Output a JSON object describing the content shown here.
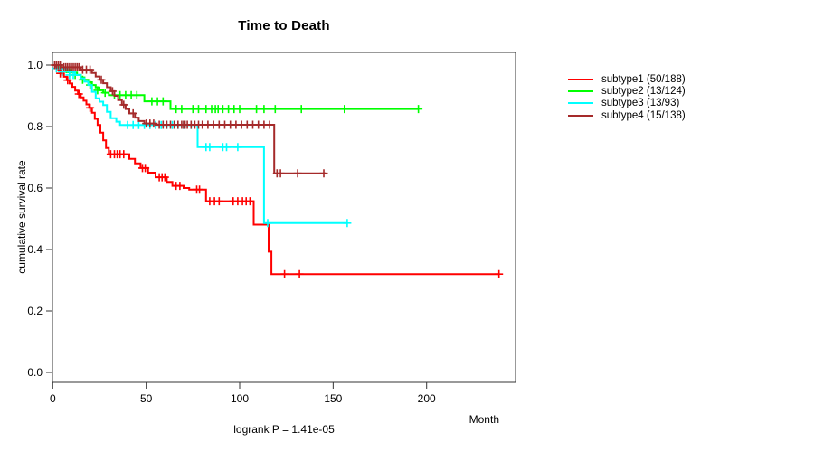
{
  "page": {
    "background": "#ffffff"
  },
  "chart_data": {
    "type": "line",
    "variant": "kaplan_meier_step",
    "title": "Time to Death",
    "xlabel": "Month",
    "ylabel": "cumulative survival rate",
    "footnote": "logrank P = 1.41e-05",
    "xlim": [
      0,
      247
    ],
    "ylim": [
      0.0,
      1.0
    ],
    "xticks": [
      0,
      50,
      100,
      150,
      200
    ],
    "yticks": [
      0.0,
      0.2,
      0.4,
      0.6,
      0.8,
      1.0
    ],
    "grid": false,
    "legend_position": "right-outside",
    "axis_color": "#333333",
    "censor_marker": "plus",
    "series": [
      {
        "name": "subtype1",
        "legend_label": "subtype1 (50/188)",
        "color": "#ff0000",
        "end_month": 238.7,
        "steps": [
          [
            0,
            1.0
          ],
          [
            1.5,
            0.995
          ],
          [
            3,
            0.984
          ],
          [
            4.5,
            0.973
          ],
          [
            6,
            0.962
          ],
          [
            7.5,
            0.951
          ],
          [
            9,
            0.94
          ],
          [
            10.5,
            0.929
          ],
          [
            12,
            0.917
          ],
          [
            13.5,
            0.906
          ],
          [
            15,
            0.895
          ],
          [
            16.5,
            0.884
          ],
          [
            18,
            0.872
          ],
          [
            19.5,
            0.861
          ],
          [
            21,
            0.845
          ],
          [
            22.5,
            0.825
          ],
          [
            24,
            0.805
          ],
          [
            25.5,
            0.78
          ],
          [
            27,
            0.755
          ],
          [
            28.5,
            0.73
          ],
          [
            30,
            0.71
          ],
          [
            41,
            0.695
          ],
          [
            44,
            0.68
          ],
          [
            47,
            0.665
          ],
          [
            51,
            0.65
          ],
          [
            55,
            0.635
          ],
          [
            61,
            0.62
          ],
          [
            64,
            0.607
          ],
          [
            70,
            0.6
          ],
          [
            73,
            0.595
          ],
          [
            82,
            0.557
          ],
          [
            107.5,
            0.481
          ],
          [
            115.5,
            0.393
          ],
          [
            117,
            0.32
          ]
        ],
        "censors": [
          [
            4,
            0.973
          ],
          [
            8,
            0.951
          ],
          [
            14,
            0.906
          ],
          [
            20,
            0.861
          ],
          [
            31,
            0.71
          ],
          [
            33,
            0.71
          ],
          [
            34.5,
            0.71
          ],
          [
            36,
            0.71
          ],
          [
            38,
            0.71
          ],
          [
            48,
            0.665
          ],
          [
            49.5,
            0.665
          ],
          [
            57,
            0.635
          ],
          [
            58.5,
            0.635
          ],
          [
            60,
            0.635
          ],
          [
            66,
            0.607
          ],
          [
            68,
            0.607
          ],
          [
            77,
            0.595
          ],
          [
            78.5,
            0.595
          ],
          [
            84,
            0.557
          ],
          [
            86.5,
            0.557
          ],
          [
            89,
            0.557
          ],
          [
            96.5,
            0.557
          ],
          [
            99,
            0.557
          ],
          [
            101.5,
            0.557
          ],
          [
            103.5,
            0.557
          ],
          [
            105.5,
            0.557
          ],
          [
            124,
            0.32
          ],
          [
            132,
            0.32
          ],
          [
            238.7,
            0.32
          ]
        ]
      },
      {
        "name": "subtype2",
        "legend_label": "subtype2 (13/124)",
        "color": "#00ff00",
        "end_month": 195.6,
        "steps": [
          [
            0,
            1.0
          ],
          [
            4,
            0.992
          ],
          [
            7,
            0.984
          ],
          [
            10,
            0.976
          ],
          [
            13,
            0.968
          ],
          [
            15,
            0.96
          ],
          [
            17,
            0.952
          ],
          [
            19,
            0.944
          ],
          [
            21,
            0.935
          ],
          [
            23,
            0.927
          ],
          [
            25,
            0.918
          ],
          [
            27,
            0.91
          ],
          [
            30,
            0.902
          ],
          [
            49,
            0.882
          ],
          [
            63,
            0.857
          ]
        ],
        "censors": [
          [
            9,
            0.976
          ],
          [
            12,
            0.968
          ],
          [
            16,
            0.952
          ],
          [
            20,
            0.935
          ],
          [
            24,
            0.918
          ],
          [
            28,
            0.91
          ],
          [
            33,
            0.902
          ],
          [
            36,
            0.902
          ],
          [
            39,
            0.902
          ],
          [
            42,
            0.902
          ],
          [
            45,
            0.902
          ],
          [
            53,
            0.882
          ],
          [
            56,
            0.882
          ],
          [
            59,
            0.882
          ],
          [
            66,
            0.857
          ],
          [
            69,
            0.857
          ],
          [
            75,
            0.857
          ],
          [
            78,
            0.857
          ],
          [
            82,
            0.857
          ],
          [
            85,
            0.857
          ],
          [
            87,
            0.857
          ],
          [
            88.5,
            0.857
          ],
          [
            91,
            0.857
          ],
          [
            94,
            0.857
          ],
          [
            97,
            0.857
          ],
          [
            100,
            0.857
          ],
          [
            109,
            0.857
          ],
          [
            113,
            0.857
          ],
          [
            119,
            0.857
          ],
          [
            133,
            0.857
          ],
          [
            156,
            0.857
          ],
          [
            195.6,
            0.857
          ]
        ]
      },
      {
        "name": "subtype3",
        "legend_label": "subtype3 (13/93)",
        "color": "#00ffff",
        "end_month": 157.5,
        "steps": [
          [
            0,
            1.0
          ],
          [
            3,
            0.989
          ],
          [
            8,
            0.978
          ],
          [
            12,
            0.968
          ],
          [
            15,
            0.957
          ],
          [
            17,
            0.946
          ],
          [
            19,
            0.935
          ],
          [
            21,
            0.913
          ],
          [
            23,
            0.892
          ],
          [
            25,
            0.881
          ],
          [
            27,
            0.87
          ],
          [
            29,
            0.848
          ],
          [
            31,
            0.827
          ],
          [
            34,
            0.816
          ],
          [
            36,
            0.805
          ],
          [
            77.5,
            0.733
          ],
          [
            113,
            0.486
          ]
        ],
        "censors": [
          [
            2,
            0.989
          ],
          [
            5,
            0.978
          ],
          [
            9,
            0.968
          ],
          [
            11,
            0.968
          ],
          [
            40,
            0.805
          ],
          [
            43,
            0.805
          ],
          [
            46,
            0.805
          ],
          [
            49,
            0.805
          ],
          [
            52,
            0.805
          ],
          [
            55,
            0.805
          ],
          [
            58,
            0.805
          ],
          [
            61,
            0.805
          ],
          [
            64,
            0.805
          ],
          [
            67,
            0.805
          ],
          [
            70,
            0.805
          ],
          [
            74,
            0.805
          ],
          [
            82,
            0.733
          ],
          [
            84,
            0.733
          ],
          [
            91,
            0.733
          ],
          [
            93,
            0.733
          ],
          [
            99,
            0.733
          ],
          [
            115,
            0.486
          ],
          [
            157.5,
            0.486
          ]
        ]
      },
      {
        "name": "subtype4",
        "legend_label": "subtype4 (15/138)",
        "color": "#a52a2a",
        "end_month": 146,
        "steps": [
          [
            0,
            1.0
          ],
          [
            5,
            0.993
          ],
          [
            15,
            0.985
          ],
          [
            21,
            0.974
          ],
          [
            23,
            0.963
          ],
          [
            25,
            0.952
          ],
          [
            27,
            0.941
          ],
          [
            29,
            0.928
          ],
          [
            31,
            0.915
          ],
          [
            33,
            0.9
          ],
          [
            35,
            0.886
          ],
          [
            37,
            0.871
          ],
          [
            39,
            0.857
          ],
          [
            41,
            0.843
          ],
          [
            44,
            0.829
          ],
          [
            46,
            0.818
          ],
          [
            49,
            0.81
          ],
          [
            55,
            0.806
          ],
          [
            118.5,
            0.648
          ]
        ],
        "censors": [
          [
            1,
            1.0
          ],
          [
            2,
            1.0
          ],
          [
            3,
            1.0
          ],
          [
            4,
            1.0
          ],
          [
            6,
            0.993
          ],
          [
            7,
            0.993
          ],
          [
            8,
            0.993
          ],
          [
            9,
            0.993
          ],
          [
            10,
            0.993
          ],
          [
            11,
            0.993
          ],
          [
            12,
            0.993
          ],
          [
            13,
            0.993
          ],
          [
            14,
            0.993
          ],
          [
            16,
            0.985
          ],
          [
            18,
            0.985
          ],
          [
            20,
            0.985
          ],
          [
            26,
            0.952
          ],
          [
            32,
            0.915
          ],
          [
            38,
            0.871
          ],
          [
            43,
            0.843
          ],
          [
            50,
            0.81
          ],
          [
            52,
            0.81
          ],
          [
            54,
            0.81
          ],
          [
            57,
            0.806
          ],
          [
            59,
            0.806
          ],
          [
            61,
            0.806
          ],
          [
            63,
            0.806
          ],
          [
            65,
            0.806
          ],
          [
            67,
            0.806
          ],
          [
            69,
            0.806
          ],
          [
            70,
            0.806
          ],
          [
            70.8,
            0.806
          ],
          [
            72,
            0.806
          ],
          [
            74,
            0.806
          ],
          [
            76,
            0.806
          ],
          [
            78,
            0.806
          ],
          [
            80,
            0.806
          ],
          [
            83,
            0.806
          ],
          [
            86,
            0.806
          ],
          [
            89,
            0.806
          ],
          [
            92,
            0.806
          ],
          [
            95,
            0.806
          ],
          [
            98,
            0.806
          ],
          [
            101,
            0.806
          ],
          [
            104,
            0.806
          ],
          [
            107,
            0.806
          ],
          [
            110,
            0.806
          ],
          [
            113,
            0.806
          ],
          [
            116,
            0.806
          ],
          [
            120,
            0.648
          ],
          [
            121.8,
            0.648
          ],
          [
            131,
            0.648
          ],
          [
            145,
            0.648
          ]
        ]
      }
    ]
  }
}
